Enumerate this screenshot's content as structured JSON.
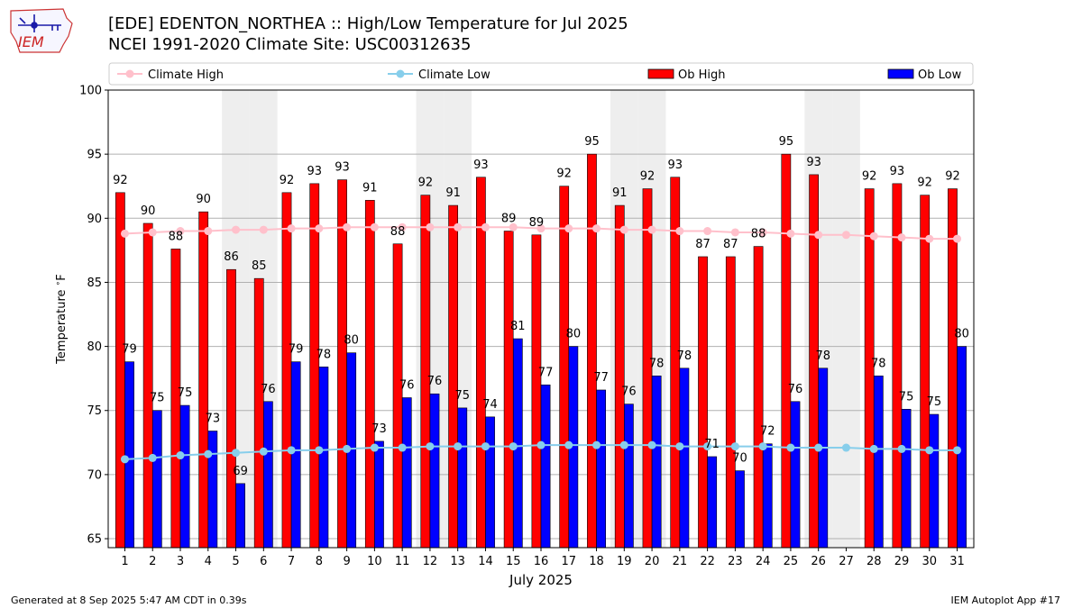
{
  "header": {
    "title_line1": "[EDE] EDENTON_NORTHEA :: High/Low Temperature for Jul 2025",
    "title_line2": "NCEI 1991-2020 Climate Site: USC00312635",
    "logo_text": "IEM"
  },
  "footer": {
    "generated": "Generated at 8 Sep 2025 5:47 AM CDT in 0.39s",
    "app": "IEM Autoplot App #17"
  },
  "colors": {
    "ob_high": "#ff0000",
    "ob_low": "#0000ff",
    "climate_high": "#ffc0cb",
    "climate_low": "#87ceeb",
    "shade": "#eeeeee",
    "grid": "#b0b0b0"
  },
  "chart_data": {
    "type": "bar",
    "xlabel": "July 2025",
    "ylabel": "Temperature $^\\circ$F",
    "ylim": [
      64.3,
      100
    ],
    "yticks": [
      65,
      70,
      75,
      80,
      85,
      90,
      95,
      100
    ],
    "grid": true,
    "legend_placement": "top",
    "categories": [
      "1",
      "2",
      "3",
      "4",
      "5",
      "6",
      "7",
      "8",
      "9",
      "10",
      "11",
      "12",
      "13",
      "14",
      "15",
      "16",
      "17",
      "18",
      "19",
      "20",
      "21",
      "22",
      "23",
      "24",
      "25",
      "26",
      "27",
      "28",
      "29",
      "30",
      "31"
    ],
    "shaded_days": [
      5,
      6,
      12,
      13,
      19,
      20,
      26,
      27
    ],
    "legend": [
      {
        "label": "Climate High",
        "kind": "line",
        "color": "#ffc0cb"
      },
      {
        "label": "Climate Low",
        "kind": "line",
        "color": "#87ceeb"
      },
      {
        "label": "Ob High",
        "kind": "bar",
        "color": "#ff0000"
      },
      {
        "label": "Ob Low",
        "kind": "bar",
        "color": "#0000ff"
      }
    ],
    "series": [
      {
        "name": "Ob High",
        "kind": "bar",
        "values": [
          92.0,
          89.6,
          87.6,
          90.5,
          86.0,
          85.3,
          92.0,
          92.7,
          93.0,
          91.4,
          88.0,
          91.8,
          91.0,
          93.2,
          89.0,
          88.7,
          92.5,
          95.0,
          91.0,
          92.3,
          93.2,
          87.0,
          87.0,
          87.8,
          95.0,
          93.4,
          null,
          92.3,
          92.7,
          91.8,
          92.3
        ],
        "labels": [
          "92",
          "90",
          "88",
          "90",
          "86",
          "85",
          "92",
          "93",
          "93",
          "91",
          "88",
          "92",
          "91",
          "93",
          "89",
          "89",
          "92",
          "95",
          "91",
          "92",
          "93",
          "87",
          "87",
          "88",
          "95",
          "93",
          "",
          "92",
          "93",
          "92",
          "92"
        ]
      },
      {
        "name": "Ob Low",
        "kind": "bar",
        "values": [
          78.8,
          75.0,
          75.4,
          73.4,
          69.3,
          75.7,
          78.8,
          78.4,
          79.5,
          72.6,
          76.0,
          76.3,
          75.2,
          74.5,
          80.6,
          77.0,
          80.0,
          76.6,
          75.5,
          77.7,
          78.3,
          71.4,
          70.3,
          72.4,
          75.7,
          78.3,
          null,
          77.7,
          75.1,
          74.7,
          80.0
        ],
        "labels": [
          "79",
          "75",
          "75",
          "73",
          "69",
          "76",
          "79",
          "78",
          "80",
          "73",
          "76",
          "76",
          "75",
          "74",
          "81",
          "77",
          "80",
          "77",
          "76",
          "78",
          "78",
          "71",
          "70",
          "72",
          "76",
          "78",
          "",
          "78",
          "75",
          "75",
          "80"
        ]
      },
      {
        "name": "Climate High",
        "kind": "line",
        "values": [
          88.8,
          88.9,
          89.0,
          89.0,
          89.1,
          89.1,
          89.2,
          89.2,
          89.3,
          89.3,
          89.3,
          89.3,
          89.3,
          89.3,
          89.3,
          89.2,
          89.2,
          89.2,
          89.1,
          89.1,
          89.0,
          89.0,
          88.9,
          88.9,
          88.8,
          88.7,
          88.7,
          88.6,
          88.5,
          88.4,
          88.4
        ]
      },
      {
        "name": "Climate Low",
        "kind": "line",
        "values": [
          71.2,
          71.3,
          71.5,
          71.6,
          71.7,
          71.8,
          71.9,
          71.9,
          72.0,
          72.1,
          72.1,
          72.2,
          72.2,
          72.2,
          72.2,
          72.3,
          72.3,
          72.3,
          72.3,
          72.3,
          72.2,
          72.2,
          72.2,
          72.2,
          72.1,
          72.1,
          72.1,
          72.0,
          72.0,
          71.9,
          71.9
        ]
      }
    ]
  }
}
